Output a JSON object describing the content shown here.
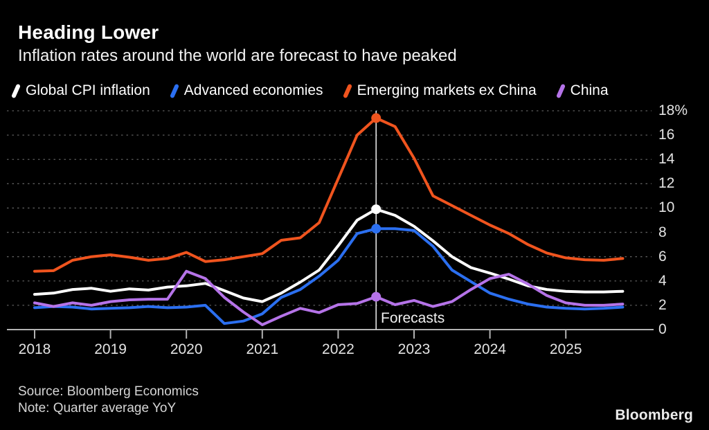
{
  "header": {
    "title": "Heading Lower",
    "subtitle": "Inflation rates around the world are forecast to have peaked"
  },
  "legend": {
    "items": [
      {
        "label": "Global CPI inflation",
        "color": "#ffffff"
      },
      {
        "label": "Advanced economies",
        "color": "#2b6ff0"
      },
      {
        "label": "Emerging markets ex China",
        "color": "#f0541e"
      },
      {
        "label": "China",
        "color": "#b573e8"
      }
    ]
  },
  "chart_data": {
    "type": "line",
    "title": "Heading Lower",
    "subtitle": "Inflation rates around the world are forecast to have peaked",
    "x_unit": "quarter (average YoY)",
    "x_start": 2018,
    "x_step_years": 0.25,
    "n_points": 32,
    "x_end": 2025.75,
    "ylim": [
      0,
      18
    ],
    "ytick_values": [
      0,
      2,
      4,
      6,
      8,
      10,
      12,
      14,
      16,
      18
    ],
    "ytick_labels": [
      "0",
      "2",
      "4",
      "6",
      "8",
      "10",
      "12",
      "14",
      "16",
      "18%"
    ],
    "xtick_years": [
      2018,
      2019,
      2020,
      2021,
      2022,
      2023,
      2024,
      2025
    ],
    "xtick_labels": [
      "2018",
      "2019",
      "2020",
      "2021",
      "2022",
      "2023",
      "2024",
      "2025"
    ],
    "grid": "dotted-horizontal",
    "legend_position": "top",
    "background": "#000000",
    "series": [
      {
        "name": "Global CPI inflation",
        "color": "#ffffff",
        "values": [
          2.9,
          3.0,
          3.3,
          3.4,
          3.15,
          3.35,
          3.25,
          3.5,
          3.6,
          3.8,
          3.2,
          2.6,
          2.3,
          3.0,
          3.9,
          4.9,
          6.9,
          9.0,
          9.9,
          9.4,
          8.5,
          7.3,
          6.0,
          5.1,
          4.65,
          4.15,
          3.6,
          3.3,
          3.15,
          3.1,
          3.1,
          3.15
        ]
      },
      {
        "name": "Advanced economies",
        "color": "#2b6ff0",
        "values": [
          1.8,
          1.9,
          1.85,
          1.7,
          1.75,
          1.8,
          1.9,
          1.8,
          1.85,
          2.0,
          0.5,
          0.7,
          1.3,
          2.65,
          3.3,
          4.4,
          5.7,
          7.9,
          8.3,
          8.3,
          8.15,
          6.85,
          4.9,
          3.95,
          3.0,
          2.5,
          2.1,
          1.85,
          1.75,
          1.7,
          1.75,
          1.85
        ]
      },
      {
        "name": "Emerging markets ex China",
        "color": "#f0541e",
        "values": [
          4.8,
          4.85,
          5.7,
          6.0,
          6.15,
          5.95,
          5.7,
          5.85,
          6.35,
          5.6,
          5.75,
          6.0,
          6.25,
          7.35,
          7.55,
          8.8,
          12.4,
          16.0,
          17.4,
          16.7,
          14.1,
          11.0,
          10.2,
          9.4,
          8.6,
          7.9,
          7.0,
          6.3,
          5.9,
          5.75,
          5.7,
          5.85
        ]
      },
      {
        "name": "China",
        "color": "#b573e8",
        "values": [
          2.2,
          1.9,
          2.2,
          2.0,
          2.3,
          2.45,
          2.5,
          2.5,
          4.8,
          4.2,
          2.65,
          1.45,
          0.4,
          1.1,
          1.75,
          1.4,
          2.05,
          2.15,
          2.7,
          2.05,
          2.4,
          1.9,
          2.3,
          3.3,
          4.2,
          4.55,
          3.75,
          2.8,
          2.2,
          2.0,
          2.0,
          2.1
        ]
      }
    ],
    "forecast": {
      "label": "Forecasts",
      "x": 2022.5,
      "dot_index": 18,
      "dot_values": {
        "Global CPI inflation": 9.9,
        "Advanced economies": 8.3,
        "Emerging markets ex China": 17.4,
        "China": 2.7
      }
    }
  },
  "footer": {
    "source": "Source: Bloomberg Economics",
    "note": "Note: Quarter average YoY",
    "logo": "Bloomberg"
  },
  "colors": {
    "background": "#000000",
    "grid": "#5e5e5e",
    "axis": "#b3b3b3",
    "tick_text": "#e3e3e3",
    "forecast_line": "#e4e4e4"
  }
}
